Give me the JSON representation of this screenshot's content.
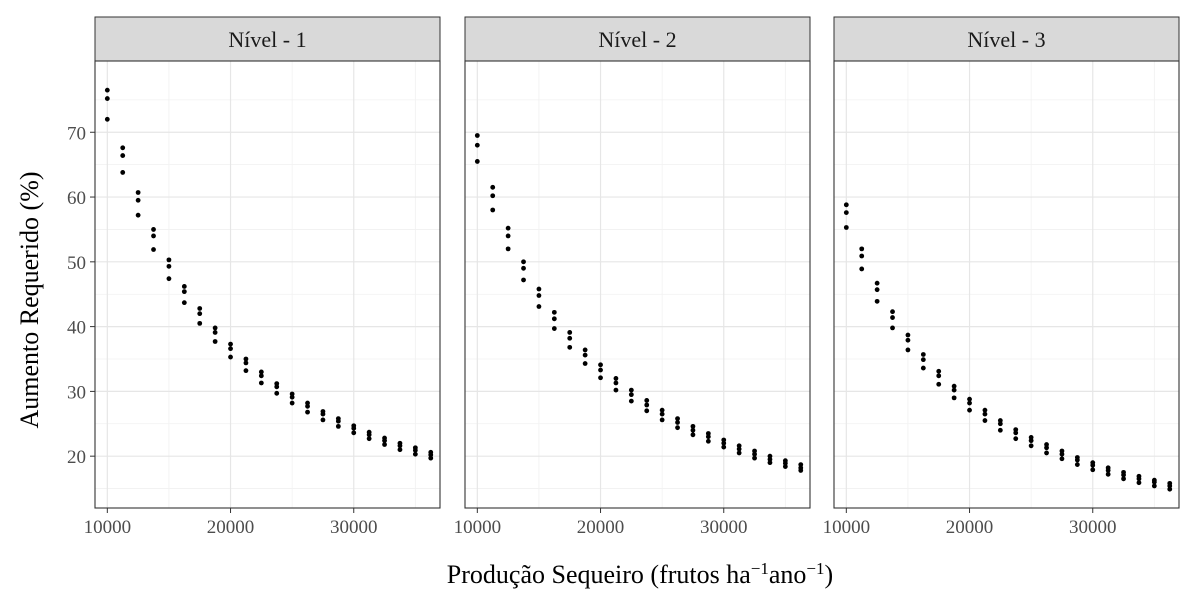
{
  "chart_data": {
    "type": "scatter",
    "xlabel_main": "Produção Sequeiro (frutos ha",
    "xlabel_sup1": "−1",
    "xlabel_mid": "ano",
    "xlabel_sup2": "−1",
    "xlabel_end": ")",
    "ylabel": "Aumento Requerido (%)",
    "xlim": [
      9000,
      37000
    ],
    "ylim": [
      12,
      81
    ],
    "x_ticks": [
      10000,
      20000,
      30000
    ],
    "x_tick_labels": [
      "10000",
      "20000",
      "30000"
    ],
    "y_ticks": [
      20,
      30,
      40,
      50,
      60,
      70
    ],
    "y_tick_labels": [
      "20",
      "30",
      "40",
      "50",
      "60",
      "70"
    ],
    "grid": true,
    "marker_color": "#000000",
    "x": [
      10000,
      11250,
      12500,
      13750,
      15000,
      16250,
      17500,
      18750,
      20000,
      21250,
      22500,
      23750,
      25000,
      26250,
      27500,
      28750,
      30000,
      31250,
      32500,
      33750,
      35000,
      36250
    ],
    "panels": [
      {
        "label": "Nível - 1",
        "series": [
          {
            "values": [
              76.5,
              67.6,
              60.7,
              55.0,
              50.3,
              46.2,
              42.8,
              39.8,
              37.3,
              35.0,
              33.0,
              31.2,
              29.6,
              28.2,
              26.9,
              25.8,
              24.7,
              23.7,
              22.8,
              22.0,
              21.3,
              20.6
            ]
          },
          {
            "values": [
              75.2,
              66.4,
              59.5,
              54.0,
              49.3,
              45.4,
              42.0,
              39.1,
              36.6,
              34.4,
              32.4,
              30.7,
              29.1,
              27.7,
              26.5,
              25.4,
              24.3,
              23.3,
              22.4,
              21.6,
              20.9,
              20.2
            ]
          },
          {
            "values": [
              72.0,
              63.8,
              57.2,
              51.9,
              47.4,
              43.7,
              40.5,
              37.7,
              35.3,
              33.2,
              31.3,
              29.7,
              28.2,
              26.8,
              25.6,
              24.6,
              23.6,
              22.7,
              21.8,
              21.0,
              20.3,
              19.7
            ]
          }
        ]
      },
      {
        "label": "Nível - 2",
        "series": [
          {
            "values": [
              69.5,
              61.5,
              55.2,
              50.0,
              45.8,
              42.2,
              39.1,
              36.4,
              34.1,
              32.0,
              30.2,
              28.6,
              27.1,
              25.8,
              24.6,
              23.5,
              22.5,
              21.6,
              20.8,
              20.0,
              19.3,
              18.7
            ]
          },
          {
            "values": [
              68.0,
              60.2,
              54.0,
              49.0,
              44.8,
              41.2,
              38.2,
              35.6,
              33.3,
              31.3,
              29.5,
              27.9,
              26.5,
              25.2,
              24.0,
              23.0,
              22.0,
              21.1,
              20.3,
              19.5,
              18.9,
              18.2
            ]
          },
          {
            "values": [
              65.5,
              58.0,
              52.0,
              47.2,
              43.1,
              39.7,
              36.8,
              34.3,
              32.1,
              30.2,
              28.5,
              27.0,
              25.6,
              24.4,
              23.3,
              22.3,
              21.4,
              20.5,
              19.7,
              19.0,
              18.4,
              17.8
            ]
          }
        ]
      },
      {
        "label": "Nível - 3",
        "series": [
          {
            "values": [
              58.8,
              52.0,
              46.7,
              42.3,
              38.7,
              35.7,
              33.1,
              30.8,
              28.8,
              27.1,
              25.5,
              24.1,
              22.9,
              21.8,
              20.8,
              19.8,
              19.0,
              18.2,
              17.5,
              16.9,
              16.3,
              15.8
            ]
          },
          {
            "values": [
              57.6,
              50.9,
              45.7,
              41.4,
              37.9,
              34.9,
              32.4,
              30.2,
              28.2,
              26.5,
              25.0,
              23.6,
              22.4,
              21.3,
              20.3,
              19.4,
              18.6,
              17.8,
              17.1,
              16.5,
              16.0,
              15.4
            ]
          },
          {
            "values": [
              55.3,
              48.9,
              43.9,
              39.8,
              36.4,
              33.6,
              31.1,
              29.0,
              27.1,
              25.5,
              24.0,
              22.7,
              21.6,
              20.5,
              19.6,
              18.7,
              17.9,
              17.2,
              16.5,
              15.9,
              15.4,
              14.9
            ]
          }
        ]
      }
    ]
  }
}
